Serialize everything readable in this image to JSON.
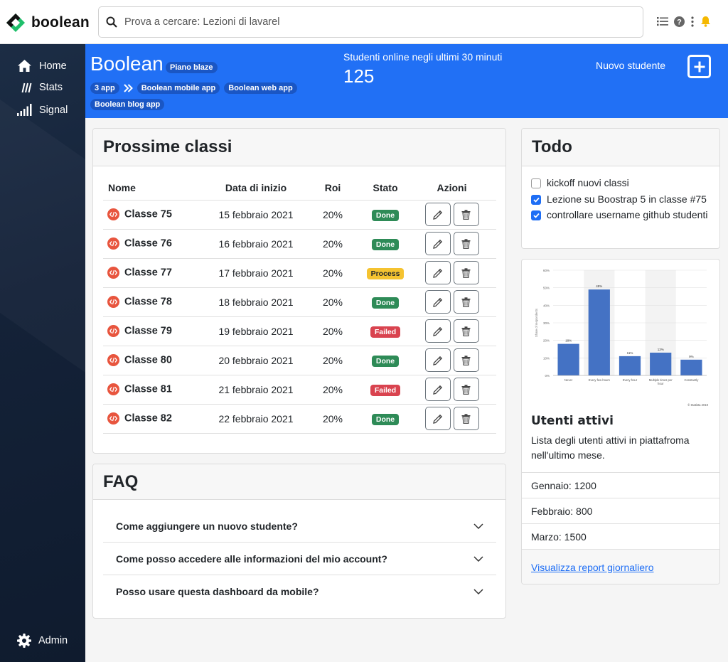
{
  "brand": {
    "name": "boolean"
  },
  "search": {
    "placeholder": "Prova a cercare: Lezioni di lavarel"
  },
  "topbar_icons": [
    "list-icon",
    "help-icon",
    "kebab-menu-icon",
    "bell-icon"
  ],
  "sidebar": {
    "items": [
      {
        "label": "Home",
        "icon": "home-icon"
      },
      {
        "label": "Stats",
        "icon": "stats-icon"
      },
      {
        "label": "Signal",
        "icon": "signal-icon"
      }
    ],
    "footer": {
      "label": "Admin",
      "icon": "gear-icon"
    }
  },
  "hero": {
    "title": "Boolean",
    "plan": "Piano blaze",
    "apps_count": "3 app",
    "apps": [
      "Boolean mobile app",
      "Boolean web app",
      "Boolean blog app"
    ],
    "online_label": "Studenti online negli ultimi 30 minuti",
    "online_value": "125",
    "new_student_label": "Nuovo studente"
  },
  "classes": {
    "title": "Prossime classi",
    "headers": {
      "name": "Nome",
      "start": "Data di inizio",
      "roi": "Roi",
      "status": "Stato",
      "actions": "Azioni"
    },
    "rows": [
      {
        "name": "Classe 75",
        "start": "15 febbraio 2021",
        "roi": "20%",
        "status": "Done"
      },
      {
        "name": "Classe 76",
        "start": "16 febbraio 2021",
        "roi": "20%",
        "status": "Done"
      },
      {
        "name": "Classe 77",
        "start": "17 febbraio 2021",
        "roi": "20%",
        "status": "Process"
      },
      {
        "name": "Classe 78",
        "start": "18 febbraio 2021",
        "roi": "20%",
        "status": "Done"
      },
      {
        "name": "Classe 79",
        "start": "19 febbraio 2021",
        "roi": "20%",
        "status": "Failed"
      },
      {
        "name": "Classe 80",
        "start": "20 febbraio 2021",
        "roi": "20%",
        "status": "Done"
      },
      {
        "name": "Classe 81",
        "start": "21 febbraio 2021",
        "roi": "20%",
        "status": "Failed"
      },
      {
        "name": "Classe 82",
        "start": "22 febbraio 2021",
        "roi": "20%",
        "status": "Done"
      }
    ]
  },
  "status_colors": {
    "Done": "#2e8b57",
    "Process": "#f5c330",
    "Failed": "#d9434f"
  },
  "faq": {
    "title": "FAQ",
    "items": [
      "Come aggiungere un nuovo studente?",
      "Come posso accedere alle informazioni del mio account?",
      "Posso usare questa dashboard da mobile?"
    ]
  },
  "todo": {
    "title": "Todo",
    "items": [
      {
        "label": "kickoff nuovi classi",
        "checked": false
      },
      {
        "label": "Lezione su Boostrap 5 in classe #75",
        "checked": true
      },
      {
        "label": "controllare username github studenti",
        "checked": true
      }
    ]
  },
  "users_card": {
    "title": "Utenti attivi",
    "text": "Lista degli utenti attivi in piattafroma nell'ultimo mese.",
    "stats": [
      "Gennaio: 1200",
      "Febbraio: 800",
      "Marzo: 1500"
    ],
    "link": "Visualizza report giornaliero"
  },
  "chart_data": {
    "type": "bar",
    "categories": [
      "Never",
      "Every few hours",
      "Every hour",
      "Multiple times per hour",
      "Constantly"
    ],
    "values": [
      18,
      49,
      11,
      13,
      9
    ],
    "value_labels": [
      "18%",
      "49%",
      "11%",
      "13%",
      "9%"
    ],
    "ylabel": "Share of respondents",
    "ylim": [
      0,
      60
    ],
    "yticks": [
      "0%",
      "10%",
      "20%",
      "30%",
      "40%",
      "50%",
      "60%"
    ],
    "credit": "© Statista 2019",
    "color": "#4472c4",
    "grid": true
  }
}
